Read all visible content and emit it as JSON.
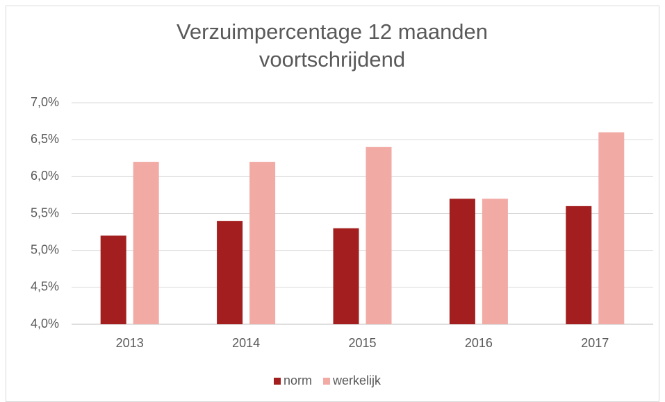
{
  "chart_data": {
    "type": "bar",
    "title": "Verzuimpercentage 12 maanden voortschrijdend",
    "categories": [
      "2013",
      "2014",
      "2015",
      "2016",
      "2017"
    ],
    "series": [
      {
        "name": "norm",
        "color": "#a31f1f",
        "values": [
          5.2,
          5.4,
          5.3,
          5.7,
          5.6
        ]
      },
      {
        "name": "werkelijk",
        "color": "#f2aaa5",
        "values": [
          6.2,
          6.2,
          6.4,
          5.7,
          6.6
        ]
      }
    ],
    "ylim": [
      4.0,
      7.0
    ],
    "yticks": [
      {
        "value": 4.0,
        "label": "4,0%"
      },
      {
        "value": 4.5,
        "label": "4,5%"
      },
      {
        "value": 5.0,
        "label": "5,0%"
      },
      {
        "value": 5.5,
        "label": "5,5%"
      },
      {
        "value": 6.0,
        "label": "6,0%"
      },
      {
        "value": 6.5,
        "label": "6,5%"
      },
      {
        "value": 7.0,
        "label": "7,0%"
      }
    ],
    "grid": true,
    "legend": "bottom"
  }
}
